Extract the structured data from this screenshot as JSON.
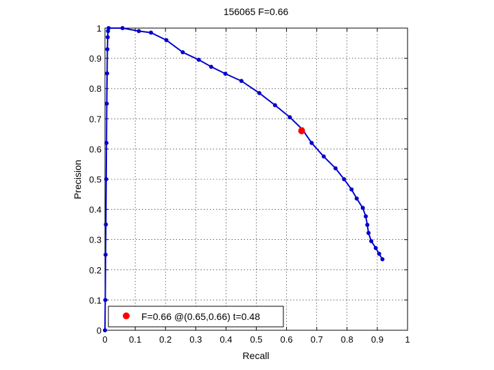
{
  "chart_data": {
    "type": "line",
    "title": "156065 F=0.66",
    "xlabel": "Recall",
    "ylabel": "Precision",
    "xlim": [
      0,
      1
    ],
    "ylim": [
      0,
      1
    ],
    "xticks": [
      "0",
      "0.1",
      "0.2",
      "0.3",
      "0.4",
      "0.5",
      "0.6",
      "0.7",
      "0.8",
      "0.9",
      "1"
    ],
    "yticks": [
      "0",
      "0.1",
      "0.2",
      "0.3",
      "0.4",
      "0.5",
      "0.6",
      "0.7",
      "0.8",
      "0.9",
      "1"
    ],
    "grid": true,
    "legend_location": "bottom-left",
    "series": [
      {
        "color": "#0000cc",
        "marker": "dot",
        "x": [
          0.0,
          0.001,
          0.002,
          0.003,
          0.004,
          0.005,
          0.006,
          0.007,
          0.008,
          0.009,
          0.01,
          0.012,
          0.058,
          0.112,
          0.152,
          0.203,
          0.257,
          0.31,
          0.351,
          0.398,
          0.451,
          0.51,
          0.562,
          0.611,
          0.652,
          0.683,
          0.723,
          0.762,
          0.79,
          0.815,
          0.832,
          0.852,
          0.862,
          0.867,
          0.871,
          0.88,
          0.895,
          0.906,
          0.917
        ],
        "y": [
          0.0,
          0.1,
          0.25,
          0.35,
          0.5,
          0.62,
          0.75,
          0.85,
          0.93,
          0.97,
          0.99,
          1.0,
          1.0,
          0.99,
          0.985,
          0.96,
          0.92,
          0.895,
          0.872,
          0.849,
          0.825,
          0.785,
          0.745,
          0.705,
          0.665,
          0.62,
          0.575,
          0.536,
          0.5,
          0.466,
          0.436,
          0.405,
          0.377,
          0.349,
          0.322,
          0.295,
          0.272,
          0.253,
          0.235
        ]
      }
    ],
    "highlight": {
      "label": "F=0.66 @(0.65,0.66) t=0.48",
      "x": 0.65,
      "y": 0.66,
      "color": "#ff0000"
    }
  }
}
